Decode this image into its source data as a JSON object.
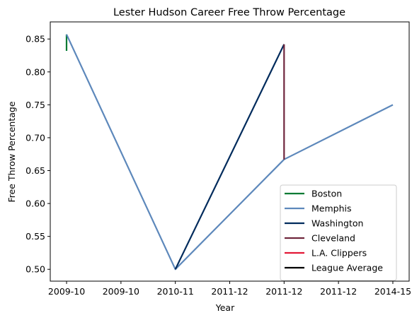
{
  "chart_data": {
    "type": "line",
    "title": "Lester Hudson Career Free Throw Percentage",
    "xlabel": "Year",
    "ylabel": "Free Throw Percentage",
    "x_tick_labels": [
      "2009-10",
      "2009-10",
      "2010-11",
      "2011-12",
      "2011-12",
      "2011-12",
      "2014-15"
    ],
    "xlim": [
      -0.15,
      3.15
    ],
    "ylim": [
      0.482,
      0.876
    ],
    "y_ticks": [
      0.5,
      0.55,
      0.6,
      0.65,
      0.7,
      0.75,
      0.8,
      0.85
    ],
    "y_tick_labels": [
      "0.50",
      "0.55",
      "0.60",
      "0.65",
      "0.70",
      "0.75",
      "0.80",
      "0.85"
    ],
    "grid": false,
    "legend_position": "bottom-right",
    "series": [
      {
        "name": "Boston",
        "color": "#007A33",
        "points": [
          [
            0,
            0.832
          ],
          [
            0,
            0.857
          ]
        ]
      },
      {
        "name": "Memphis",
        "color": "#5D88BB",
        "points": [
          [
            0,
            0.857
          ],
          [
            1,
            0.5
          ],
          [
            2,
            0.667
          ],
          [
            3,
            0.75
          ]
        ]
      },
      {
        "name": "Washington",
        "color": "#002B5C",
        "points": [
          [
            1,
            0.5
          ],
          [
            2,
            0.842
          ]
        ]
      },
      {
        "name": "Cleveland",
        "color": "#6F263D",
        "points": [
          [
            2,
            0.842
          ],
          [
            2,
            0.667
          ]
        ]
      },
      {
        "name": "L.A. Clippers",
        "color": "#E31837",
        "points": []
      },
      {
        "name": "League Average",
        "color": "#000000",
        "points": []
      }
    ]
  }
}
